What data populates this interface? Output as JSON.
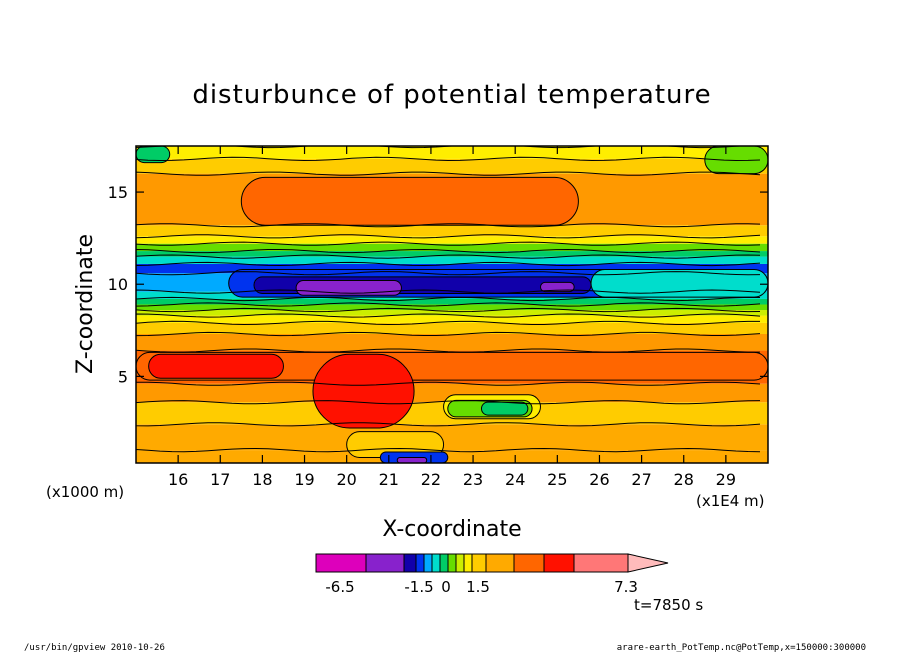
{
  "chart_data": {
    "type": "heatmap",
    "title": "disturbunce of potential temperature",
    "xlabel": "X-coordinate",
    "ylabel": "Z-coordinate",
    "x_unit_label": "(x1E4 m)",
    "y_unit_label": "(x1000 m)",
    "x_ticks": [
      "16",
      "17",
      "18",
      "19",
      "20",
      "21",
      "22",
      "23",
      "24",
      "25",
      "26",
      "27",
      "28",
      "29"
    ],
    "y_ticks": [
      "5",
      "10",
      "15"
    ],
    "xlim": [
      15,
      30
    ],
    "ylim": [
      0.3,
      17.5
    ],
    "colorbar": {
      "labels": [
        "-6.5",
        "-1.5",
        "0",
        "1.5",
        "7.3"
      ],
      "colors": [
        "#dd00bb",
        "#8822cc",
        "#1100aa",
        "#0033ee",
        "#00aaff",
        "#00ddcc",
        "#00cc66",
        "#66dd00",
        "#ccee00",
        "#ffee00",
        "#ffcc00",
        "#ffaa00",
        "#ff6600",
        "#ff1100",
        "#ff7777"
      ]
    },
    "time_label": "t=7850 s",
    "footer_left": "/usr/bin/gpview   2010-10-26",
    "footer_right": "arare-earth_PotTemp.nc@PotTemp,x=150000:300000",
    "bands": [
      {
        "z": [
          0.3,
          1.0
        ],
        "color": "#ffaa00"
      },
      {
        "z": [
          1.0,
          2.4
        ],
        "color": "#ffaa00"
      },
      {
        "z": [
          2.4,
          3.6
        ],
        "color": "#ffcc00"
      },
      {
        "z": [
          3.6,
          4.6
        ],
        "color": "#ff9900"
      },
      {
        "z": [
          4.6,
          6.4
        ],
        "color": "#ff6600"
      },
      {
        "z": [
          6.4,
          7.3
        ],
        "color": "#ff9900"
      },
      {
        "z": [
          7.3,
          7.9
        ],
        "color": "#ffcc00"
      },
      {
        "z": [
          7.9,
          8.3
        ],
        "color": "#ffee00"
      },
      {
        "z": [
          8.3,
          8.6
        ],
        "color": "#ccee00"
      },
      {
        "z": [
          8.6,
          8.9
        ],
        "color": "#66dd00"
      },
      {
        "z": [
          8.9,
          9.2
        ],
        "color": "#00cc66"
      },
      {
        "z": [
          9.2,
          9.6
        ],
        "color": "#00ddcc"
      },
      {
        "z": [
          9.6,
          10.6
        ],
        "color": "#00aaff"
      },
      {
        "z": [
          10.6,
          11.1
        ],
        "color": "#0033ee"
      },
      {
        "z": [
          11.1,
          11.5
        ],
        "color": "#00ddcc"
      },
      {
        "z": [
          11.5,
          11.8
        ],
        "color": "#00cc66"
      },
      {
        "z": [
          11.8,
          12.2
        ],
        "color": "#66dd00"
      },
      {
        "z": [
          12.2,
          12.6
        ],
        "color": "#ffee00"
      },
      {
        "z": [
          12.6,
          13.2
        ],
        "color": "#ffcc00"
      },
      {
        "z": [
          13.2,
          16.0
        ],
        "color": "#ff9900"
      },
      {
        "z": [
          16.0,
          16.8
        ],
        "color": "#ffcc00"
      },
      {
        "z": [
          16.8,
          17.5
        ],
        "color": "#ffee00"
      }
    ],
    "regions": [
      {
        "x": [
          17.2,
          26.8
        ],
        "z": [
          9.3,
          10.8
        ],
        "color": "#0033ee"
      },
      {
        "x": [
          17.8,
          25.8
        ],
        "z": [
          9.5,
          10.4
        ],
        "color": "#1100aa"
      },
      {
        "x": [
          18.8,
          21.3
        ],
        "z": [
          9.4,
          10.2
        ],
        "color": "#8822cc"
      },
      {
        "x": [
          24.6,
          25.4
        ],
        "z": [
          9.6,
          10.1
        ],
        "color": "#8822cc"
      },
      {
        "x": [
          25.8,
          30.0
        ],
        "z": [
          9.3,
          10.8
        ],
        "color": "#00ddcc"
      },
      {
        "x": [
          17.5,
          25.5
        ],
        "z": [
          13.2,
          15.8
        ],
        "color": "#ff6600"
      },
      {
        "x": [
          15.0,
          30.0
        ],
        "z": [
          4.8,
          6.3
        ],
        "color": "#ff6600"
      },
      {
        "x": [
          15.3,
          18.5
        ],
        "z": [
          4.9,
          6.2
        ],
        "color": "#ff1100"
      },
      {
        "x": [
          19.2,
          21.6
        ],
        "z": [
          2.2,
          6.2
        ],
        "color": "#ff1100"
      },
      {
        "x": [
          20.0,
          22.3
        ],
        "z": [
          0.6,
          2.0
        ],
        "color": "#ffcc00"
      },
      {
        "x": [
          20.8,
          22.4
        ],
        "z": [
          0.3,
          0.9
        ],
        "color": "#0033ee"
      },
      {
        "x": [
          21.2,
          21.9
        ],
        "z": [
          0.3,
          0.6
        ],
        "color": "#8822cc"
      },
      {
        "x": [
          22.3,
          24.6
        ],
        "z": [
          2.7,
          4.0
        ],
        "color": "#ffee00"
      },
      {
        "x": [
          22.4,
          24.4
        ],
        "z": [
          2.8,
          3.7
        ],
        "color": "#66dd00"
      },
      {
        "x": [
          23.2,
          24.3
        ],
        "z": [
          2.9,
          3.6
        ],
        "color": "#00cc66"
      },
      {
        "x": [
          28.5,
          30.0
        ],
        "z": [
          16.0,
          17.5
        ],
        "color": "#66dd00"
      },
      {
        "x": [
          15.0,
          15.8
        ],
        "z": [
          16.6,
          17.5
        ],
        "color": "#00cc66"
      }
    ]
  }
}
